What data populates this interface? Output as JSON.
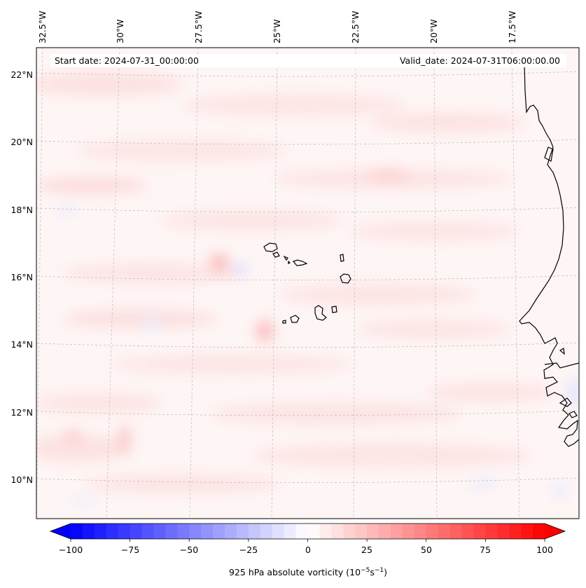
{
  "header": {
    "start_date": "Start date: 2024-07-31_00:00:00",
    "valid_date": "Valid_date: 2024-07-31T06:00:00.00"
  },
  "longitude_labels": [
    "32.5°W",
    "30°W",
    "27.5°W",
    "25°W",
    "22.5°W",
    "20°W",
    "17.5°W"
  ],
  "latitude_labels": [
    "22°N",
    "20°N",
    "18°N",
    "16°N",
    "14°N",
    "12°N",
    "10°N"
  ],
  "colorbar": {
    "label_prefix": "925 hPa absolute vorticity (10",
    "label_exp1": "−5",
    "label_mid": "s",
    "label_exp2": "−1",
    "label_suffix": ")",
    "tick_labels": [
      "−100",
      "−75",
      "−50",
      "−25",
      "0",
      "25",
      "50",
      "75",
      "100"
    ],
    "colors": {
      "negative": "#0000ff",
      "zero": "#ffffff",
      "positive": "#ff0000"
    }
  },
  "colors": {
    "coastline": "#000000",
    "gridline": "#bbbbbb",
    "background_tint": "#fff4f4"
  }
}
